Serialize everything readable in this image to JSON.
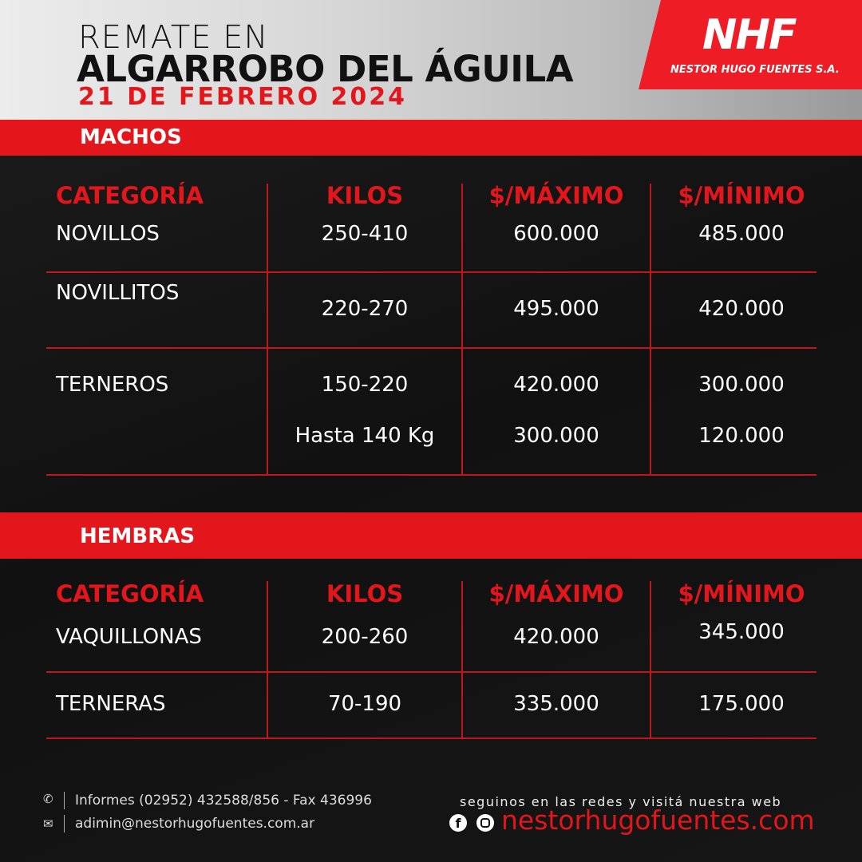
{
  "header": {
    "line1": "REMATE EN",
    "line2": "ALGARROBO DEL ÁGUILA",
    "date": "21 DE FEBRERO 2024"
  },
  "logo": {
    "mark": "NHF",
    "company": "NESTOR HUGO FUENTES S.A."
  },
  "colors": {
    "accent": "#e3161b",
    "background": "#141414"
  },
  "machos": {
    "title": "MACHOS",
    "headers": [
      "CATEGORÍA",
      "KILOS",
      "$/MÁXIMO",
      "$/MÍNIMO"
    ],
    "rows": [
      {
        "categoria": "NOVILLOS",
        "kilos": "250-410",
        "max": "600.000",
        "min": "485.000"
      },
      {
        "categoria": "NOVILLITOS",
        "kilos": "220-270",
        "max": "495.000",
        "min": "420.000"
      },
      {
        "categoria": "TERNEROS",
        "kilos": "150-220",
        "max": "420.000",
        "min": "300.000"
      },
      {
        "categoria": "",
        "kilos": "Hasta 140 Kg",
        "max": "300.000",
        "min": "120.000"
      }
    ]
  },
  "hembras": {
    "title": "HEMBRAS",
    "headers": [
      "CATEGORÍA",
      "KILOS",
      "$/MÁXIMO",
      "$/MÍNIMO"
    ],
    "rows": [
      {
        "categoria": "VAQUILLONAS",
        "kilos": "200-260",
        "max": "420.000",
        "min": "345.000"
      },
      {
        "categoria": "TERNERAS",
        "kilos": "70-190",
        "max": "335.000",
        "min": "175.000"
      }
    ]
  },
  "footer": {
    "phone": "Informes (02952) 432588/856 - Fax 436996",
    "email": "adimin@nestorhugofuentes.com.ar",
    "social_text": "seguinos en las redes y visitá nuestra web",
    "website": "nestorhugofuentes.com",
    "icons": [
      "phone-icon",
      "mail-icon",
      "facebook-icon",
      "instagram-icon"
    ]
  }
}
